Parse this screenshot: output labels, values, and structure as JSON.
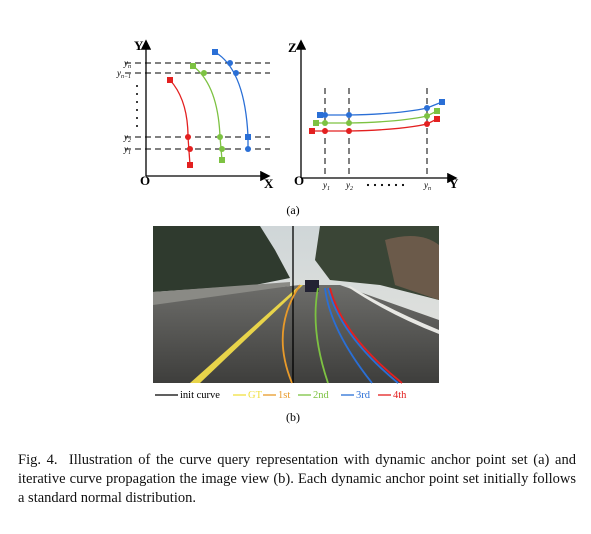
{
  "panel_a": {
    "left": {
      "y_axis": "Y",
      "x_axis": "X",
      "origin": "O",
      "ticks": [
        {
          "base": "y",
          "sub": "n"
        },
        {
          "base": "y",
          "sub": "n−1"
        },
        {
          "base": "y",
          "sub": "2"
        },
        {
          "base": "y",
          "sub": "1"
        }
      ]
    },
    "right": {
      "z_axis": "Z",
      "y_axis": "Y",
      "origin": "O",
      "ticks": [
        {
          "base": "y",
          "sub": "1"
        },
        {
          "base": "y",
          "sub": "2"
        },
        {
          "base": "y",
          "sub": "n"
        }
      ]
    },
    "label": "(a)"
  },
  "panel_b": {
    "legend": [
      "init curve",
      "GT",
      "1st",
      "2nd",
      "3rd",
      "4th"
    ],
    "label": "(b)"
  },
  "caption": {
    "label": "Fig. 4.",
    "text": "Illustration of the curve query representation with dynamic anchor point set (a) and iterative curve propagation the image view (b). Each dynamic anchor point set initially follows a standard normal distribution."
  }
}
